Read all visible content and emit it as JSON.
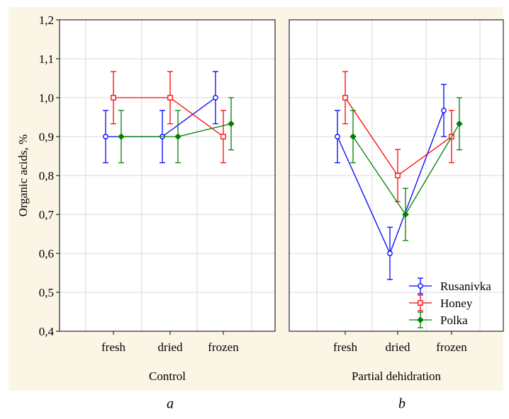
{
  "figure": {
    "background_color": "#fbf5e6",
    "plot_background": "#ffffff",
    "grid_color": "#d9d9d9",
    "ylabel": "Organic acids, %",
    "panel_letters": [
      "a",
      "b"
    ]
  },
  "chart_data": [
    {
      "type": "line",
      "title": "",
      "xlabel": "Control",
      "ylabel": "Organic acids, %",
      "categories": [
        "fresh",
        "dried",
        "frozen"
      ],
      "ylim": [
        0.4,
        1.2
      ],
      "yticks": [
        "0,4",
        "0,5",
        "0,6",
        "0,7",
        "0,8",
        "0,9",
        "1,0",
        "1,1",
        "1,2"
      ],
      "grid": true,
      "error_bars": true,
      "legend": null,
      "series": [
        {
          "name": "Rusanivka",
          "color": "#0000ff",
          "marker": "circle",
          "values": [
            0.9,
            0.9,
            1.0
          ],
          "errors": [
            0.067,
            0.067,
            0.067
          ]
        },
        {
          "name": "Honey",
          "color": "#ff0000",
          "marker": "square",
          "values": [
            1.0,
            1.0,
            0.9
          ],
          "errors": [
            0.067,
            0.067,
            0.067
          ]
        },
        {
          "name": "Polka",
          "color": "#008000",
          "marker": "diamond",
          "values": [
            0.9,
            0.9,
            0.933
          ],
          "errors": [
            0.067,
            0.067,
            0.067
          ]
        }
      ]
    },
    {
      "type": "line",
      "title": "",
      "xlabel": "Partial dehidration",
      "ylabel": "",
      "categories": [
        "fresh",
        "dried",
        "frozen"
      ],
      "ylim": [
        0.4,
        1.2
      ],
      "yticks": [],
      "grid": true,
      "error_bars": true,
      "legend": "bottom-right",
      "series": [
        {
          "name": "Rusanivka",
          "color": "#0000ff",
          "marker": "circle",
          "values": [
            0.9,
            0.6,
            0.967
          ],
          "errors": [
            0.067,
            0.067,
            0.067
          ]
        },
        {
          "name": "Honey",
          "color": "#ff0000",
          "marker": "square",
          "values": [
            1.0,
            0.8,
            0.9
          ],
          "errors": [
            0.067,
            0.067,
            0.067
          ]
        },
        {
          "name": "Polka",
          "color": "#008000",
          "marker": "diamond",
          "values": [
            0.9,
            0.7,
            0.933
          ],
          "errors": [
            0.067,
            0.067,
            0.067
          ]
        }
      ]
    }
  ]
}
